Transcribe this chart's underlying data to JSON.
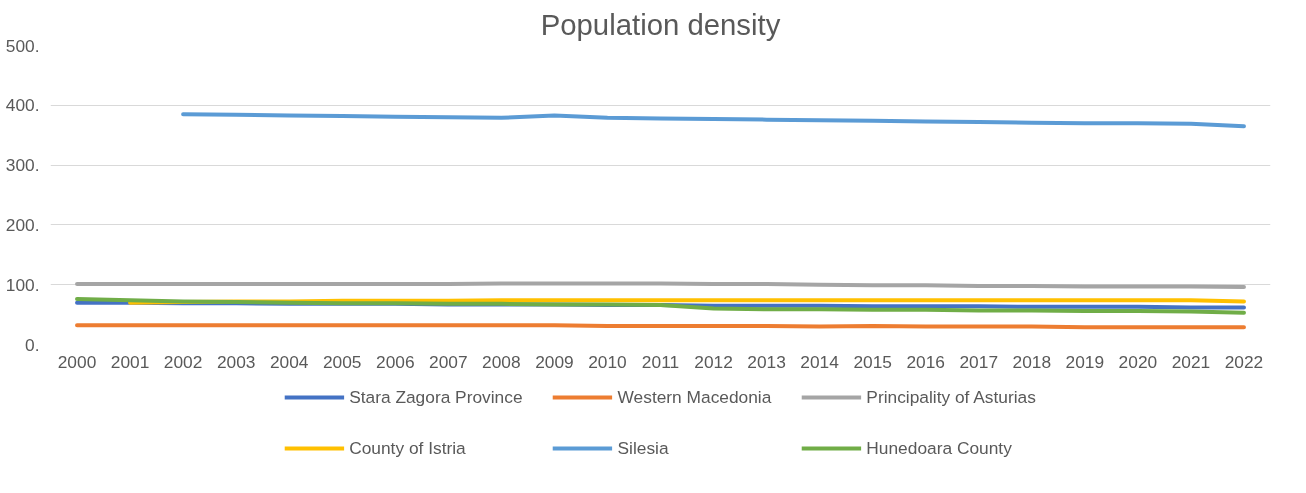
{
  "chart_data": {
    "type": "line",
    "title": "Population density",
    "categories": [
      "2000",
      "2001",
      "2002",
      "2003",
      "2004",
      "2005",
      "2006",
      "2007",
      "2008",
      "2009",
      "2010",
      "2011",
      "2012",
      "2013",
      "2014",
      "2015",
      "2016",
      "2017",
      "2018",
      "2019",
      "2020",
      "2021",
      "2022"
    ],
    "series": [
      {
        "name": "Stara Zagora Province",
        "color": "#4472c4",
        "values": [
          70,
          70,
          69,
          69,
          68,
          68,
          68,
          67,
          67,
          67,
          66,
          66,
          65,
          65,
          65,
          64,
          64,
          64,
          63,
          63,
          63,
          62,
          62
        ]
      },
      {
        "name": "Western Macedonia",
        "color": "#ed7d31",
        "values": [
          32,
          32,
          32,
          32,
          32,
          32,
          32,
          32,
          32,
          32,
          31,
          31,
          31,
          31,
          30,
          31,
          30,
          30,
          30,
          29,
          29,
          29,
          29
        ]
      },
      {
        "name": "Principality of Asturias",
        "color": "#a5a5a5",
        "values": [
          101,
          101,
          101,
          101,
          101,
          101,
          101,
          101,
          102,
          102,
          102,
          102,
          101,
          101,
          100,
          99,
          99,
          98,
          98,
          97,
          97,
          97,
          96
        ]
      },
      {
        "name": "County of Istria",
        "color": "#ffc000",
        "values": [
          null,
          70,
          71,
          72,
          72,
          73,
          73,
          73,
          74,
          74,
          74,
          74,
          74,
          74,
          74,
          74,
          74,
          74,
          74,
          74,
          74,
          74,
          72
        ]
      },
      {
        "name": "Silesia",
        "color": "#5b9bd5",
        "values": [
          null,
          null,
          385,
          384,
          383,
          382,
          381,
          380,
          379,
          383,
          379,
          378,
          377,
          376,
          375,
          374,
          373,
          372,
          371,
          370,
          370,
          369,
          365
        ]
      },
      {
        "name": "Hunedoara County",
        "color": "#70ad47",
        "values": [
          76,
          74,
          72,
          71,
          70,
          69,
          69,
          68,
          68,
          67,
          67,
          66,
          60,
          59,
          59,
          58,
          58,
          57,
          57,
          56,
          56,
          55,
          53
        ]
      }
    ],
    "ylim": [
      0,
      500
    ],
    "yticks": [
      {
        "value": 0,
        "label": "0."
      },
      {
        "value": 100,
        "label": "100."
      },
      {
        "value": 200,
        "label": "200."
      },
      {
        "value": 300,
        "label": "300."
      },
      {
        "value": 400,
        "label": "400."
      },
      {
        "value": 500,
        "label": "500."
      }
    ],
    "grid": "y",
    "legend": "bottom",
    "line_style": "solid",
    "marker": "none"
  }
}
